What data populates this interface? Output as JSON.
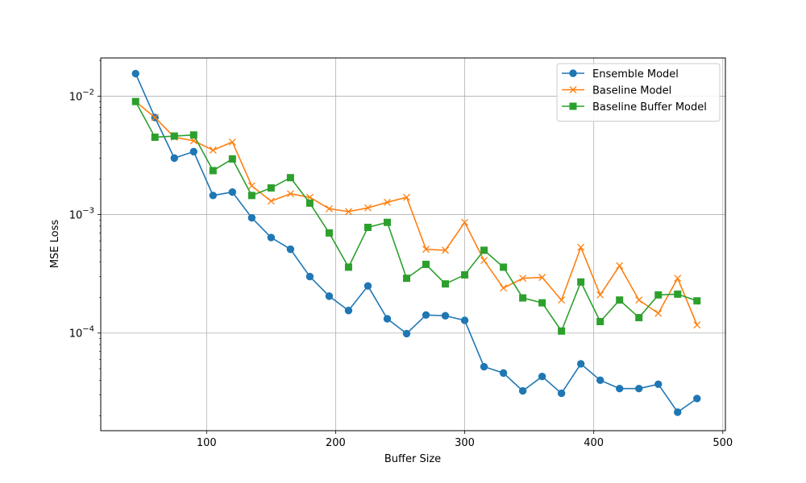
{
  "chart_data": {
    "type": "line",
    "title": "",
    "xlabel": "Buffer Size",
    "ylabel": "MSE Loss",
    "xlim": [
      18,
      502
    ],
    "ylim": [
      1.5e-05,
      0.021
    ],
    "yscale": "log",
    "grid": true,
    "legend": "top-right",
    "x_ticks": [
      {
        "value": 100,
        "label": "100"
      },
      {
        "value": 200,
        "label": "200"
      },
      {
        "value": 300,
        "label": "300"
      },
      {
        "value": 400,
        "label": "400"
      },
      {
        "value": 500,
        "label": "500"
      }
    ],
    "y_ticks": [
      {
        "value": 0.0001,
        "base": "10",
        "exp": "−4"
      },
      {
        "value": 0.001,
        "base": "10",
        "exp": "−3"
      },
      {
        "value": 0.01,
        "base": "10",
        "exp": "−2"
      }
    ],
    "x": [
      45,
      60,
      75,
      90,
      105,
      120,
      135,
      150,
      165,
      180,
      195,
      210,
      225,
      240,
      255,
      270,
      285,
      300,
      315,
      330,
      345,
      360,
      375,
      390,
      405,
      420,
      435,
      450,
      465,
      480
    ],
    "series": [
      {
        "name": "Ensemble Model",
        "color": "#1f77b4",
        "marker": "circle",
        "values": [
          0.0155,
          0.0066,
          0.003,
          0.0034,
          0.00145,
          0.00155,
          0.00094,
          0.00064,
          0.00051,
          0.0003,
          0.000205,
          0.000155,
          0.00025,
          0.000132,
          9.9e-05,
          0.000142,
          0.00014,
          0.000128,
          5.2e-05,
          4.6e-05,
          3.25e-05,
          4.3e-05,
          3.1e-05,
          5.5e-05,
          4e-05,
          3.4e-05,
          3.4e-05,
          3.7e-05,
          2.15e-05,
          2.8e-05
        ]
      },
      {
        "name": "Baseline Model",
        "color": "#ff7f0e",
        "marker": "x",
        "values": [
          0.009,
          0.0066,
          0.0045,
          0.0042,
          0.0035,
          0.0041,
          0.00175,
          0.0013,
          0.0015,
          0.0014,
          0.00112,
          0.00106,
          0.00114,
          0.00127,
          0.0014,
          0.00051,
          0.0005,
          0.00086,
          0.00041,
          0.00024,
          0.00029,
          0.000295,
          0.00019,
          0.00053,
          0.00021,
          0.00037,
          0.00019,
          0.000147,
          0.00029,
          0.000117
        ]
      },
      {
        "name": "Baseline Buffer Model",
        "color": "#2ca02c",
        "marker": "square",
        "values": [
          0.009,
          0.0045,
          0.0046,
          0.0047,
          0.00235,
          0.00295,
          0.00145,
          0.00168,
          0.00205,
          0.00125,
          0.0007,
          0.00036,
          0.00078,
          0.00086,
          0.00029,
          0.00038,
          0.00026,
          0.00031,
          0.0005,
          0.00036,
          0.000198,
          0.00018,
          0.000104,
          0.00027,
          0.000125,
          0.00019,
          0.000135,
          0.00021,
          0.000213,
          0.000187
        ]
      }
    ]
  }
}
